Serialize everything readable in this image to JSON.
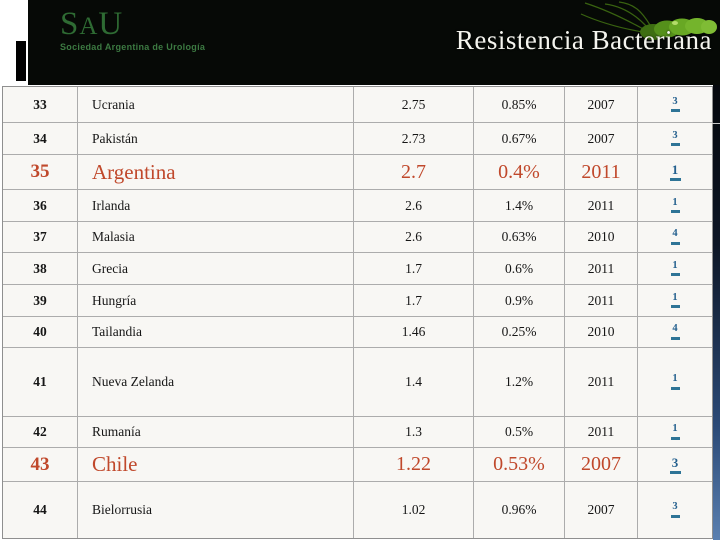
{
  "header": {
    "logo_letters": [
      "S",
      "A",
      "U"
    ],
    "logo_subtitle": "Sociedad Argentina de Urología",
    "title": "Resistencia Bacteriana"
  },
  "table": {
    "rows": [
      {
        "rank": "33",
        "country": "Ucrania",
        "value": "2.75",
        "percent": "0.85%",
        "year": "2007",
        "ref": "3",
        "highlight": false
      },
      {
        "rank": "34",
        "country": "Pakistán",
        "value": "2.73",
        "percent": "0.67%",
        "year": "2007",
        "ref": "3",
        "highlight": false
      },
      {
        "rank": "35",
        "country": "Argentina",
        "value": "2.7",
        "percent": "0.4%",
        "year": "2011",
        "ref": "1",
        "highlight": true
      },
      {
        "rank": "36",
        "country": "Irlanda",
        "value": "2.6",
        "percent": "1.4%",
        "year": "2011",
        "ref": "1",
        "highlight": false
      },
      {
        "rank": "37",
        "country": "Malasia",
        "value": "2.6",
        "percent": "0.63%",
        "year": "2010",
        "ref": "4",
        "highlight": false
      },
      {
        "rank": "38",
        "country": "Grecia",
        "value": "1.7",
        "percent": "0.6%",
        "year": "2011",
        "ref": "1",
        "highlight": false
      },
      {
        "rank": "39",
        "country": "Hungría",
        "value": "1.7",
        "percent": "0.9%",
        "year": "2011",
        "ref": "1",
        "highlight": false
      },
      {
        "rank": "40",
        "country": "Tailandia",
        "value": "1.46",
        "percent": "0.25%",
        "year": "2010",
        "ref": "4",
        "highlight": false
      },
      {
        "rank": "41",
        "country": "Nueva Zelanda",
        "value": "1.4",
        "percent": "1.2%",
        "year": "2011",
        "ref": "1",
        "highlight": false
      },
      {
        "rank": "42",
        "country": "Rumanía",
        "value": "1.3",
        "percent": "0.5%",
        "year": "2011",
        "ref": "1",
        "highlight": false
      },
      {
        "rank": "43",
        "country": "Chile",
        "value": "1.22",
        "percent": "0.53%",
        "year": "2007",
        "ref": "3",
        "highlight": true
      },
      {
        "rank": "44",
        "country": "Bielorrusia",
        "value": "1.02",
        "percent": "0.96%",
        "year": "2007",
        "ref": "3",
        "highlight": false
      }
    ]
  },
  "colors": {
    "highlight_red": "#C0482B",
    "footnote_blue": "#24608E",
    "footnote_underline": "#2E7496",
    "logo_green": "#2E6B33",
    "table_bg": "#F8F7F4",
    "header_bg": "#060906"
  }
}
